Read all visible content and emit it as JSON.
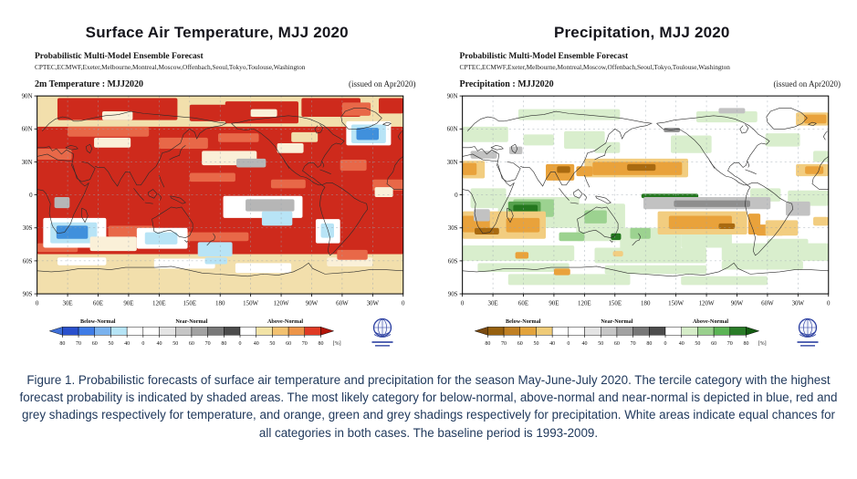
{
  "figure": {
    "caption": "Figure 1. Probabilistic forecasts of surface air temperature and precipitation for the season May-June-July 2020.  The tercile category with the highest forecast probability is indicated by shaded areas. The most likely category for below-normal, above-normal and near-normal is depicted in blue, red and grey shadings respectively for temperature, and orange, green and grey shadings respectively for precipitation. White areas indicate equal chances for all categories in both cases.  The baseline period is 1993-2009."
  },
  "axes": {
    "lat_labels": [
      "90N",
      "60N",
      "30N",
      "0",
      "30S",
      "60S",
      "90S"
    ],
    "lon_labels": [
      "0",
      "30E",
      "60E",
      "90E",
      "120E",
      "150E",
      "180",
      "150W",
      "120W",
      "90W",
      "60W",
      "30W",
      "0"
    ]
  },
  "panels": [
    {
      "title": "Surface Air Temperature, MJJ 2020",
      "header_bold": "Probabilistic Multi-Model Ensemble Forecast",
      "header_sources": "CPTEC,ECMWF,Exeter,Melbourne,Montreal,Moscow,Offenbach,Seoul,Tokyo,Toulouse,Washington",
      "map_label": "2m Temperature : MJJ2020",
      "issued": "(issued on Apr2020)",
      "colorbar": {
        "group_labels": [
          "Below-Normal",
          "Near-Normal",
          "Above-Normal"
        ],
        "tick_labels": [
          "80",
          "70",
          "60",
          "50",
          "40",
          "0",
          "40",
          "50",
          "60",
          "70",
          "80",
          "0",
          "40",
          "50",
          "60",
          "70",
          "80"
        ],
        "unit": "[%]",
        "left_arrow": "#3f6fd8",
        "cells": [
          "#2a50cc",
          "#3f7ce6",
          "#7ab2ee",
          "#b6e4f6",
          "#ffffff",
          "#ffffff",
          "#e4e4e4",
          "#c6c6c6",
          "#a2a2a2",
          "#787878",
          "#4c4c4c",
          "#ffffff",
          "#f2e3a6",
          "#f2c170",
          "#ec9448",
          "#df3a24"
        ],
        "right_arrow": "#b3150a"
      }
    },
    {
      "title": "Precipitation, MJJ 2020",
      "header_bold": "Probabilistic Multi-Model Ensemble Forecast",
      "header_sources": "CPTEC,ECMWF,Exeter,Melbourne,Montreal,Moscow,Offenbach,Seoul,Tokyo,Toulouse,Washington",
      "map_label": "Precipitation : MJJ2020",
      "issued": "(issued on Apr2020)",
      "colorbar": {
        "group_labels": [
          "Below-Normal",
          "Near-Normal",
          "Above-Normal"
        ],
        "tick_labels": [
          "80",
          "70",
          "60",
          "50",
          "40",
          "0",
          "40",
          "50",
          "60",
          "70",
          "80",
          "0",
          "40",
          "50",
          "60",
          "70",
          "80"
        ],
        "unit": "[%]",
        "left_arrow": "#7a4a10",
        "cells": [
          "#96600f",
          "#c08024",
          "#e2a33c",
          "#efcb78",
          "#ffffff",
          "#ffffff",
          "#e4e4e4",
          "#c6c6c6",
          "#a2a2a2",
          "#787878",
          "#4c4c4c",
          "#ffffff",
          "#d5ecc8",
          "#9ad08e",
          "#5cb456",
          "#2a7c28"
        ],
        "right_arrow": "#145c12"
      }
    }
  ],
  "map_data": {
    "temperature": {
      "palette": {
        "bg": "#f2dfac",
        "red": "#ce2a1c",
        "red2": "#e86848",
        "cream": "#faf0d8",
        "white": "#ffffff",
        "cyan": "#b8e4f6",
        "blue": "#4090dc",
        "grey": "#b6b6b6",
        "tan": "#f2dfac"
      },
      "patches": [
        [
          0,
          62,
          360,
          116,
          "red"
        ],
        [
          0,
          -54,
          360,
          36,
          "tan"
        ],
        [
          20,
          88,
          118,
          20,
          "red"
        ],
        [
          150,
          82,
          42,
          15,
          "red"
        ],
        [
          185,
          85,
          72,
          20,
          "red"
        ],
        [
          260,
          88,
          58,
          17,
          "red"
        ],
        [
          300,
          84,
          28,
          12,
          "red2"
        ],
        [
          336,
          88,
          24,
          14,
          "red"
        ],
        [
          64,
          76,
          30,
          8,
          "cream"
        ],
        [
          210,
          78,
          26,
          7,
          "cream"
        ],
        [
          30,
          62,
          80,
          9,
          "red2"
        ],
        [
          120,
          52,
          48,
          10,
          "red2"
        ],
        [
          0,
          42,
          34,
          10,
          "red2"
        ],
        [
          150,
          20,
          45,
          8,
          "red2"
        ],
        [
          230,
          14,
          34,
          8,
          "red2"
        ],
        [
          70,
          -28,
          44,
          10,
          "red2"
        ],
        [
          140,
          -34,
          68,
          8,
          "red2"
        ],
        [
          298,
          32,
          26,
          10,
          "red2"
        ],
        [
          178,
          56,
          40,
          8,
          "red2"
        ],
        [
          330,
          14,
          30,
          10,
          "red2"
        ],
        [
          0,
          -44,
          40,
          8,
          "red2"
        ],
        [
          162,
          40,
          54,
          13,
          "cream"
        ],
        [
          196,
          33,
          29,
          8,
          "grey"
        ],
        [
          236,
          47,
          26,
          9,
          "cream"
        ],
        [
          250,
          57,
          26,
          9,
          "tan"
        ],
        [
          56,
          52,
          36,
          9,
          "cream"
        ],
        [
          332,
          7,
          18,
          9,
          "cream"
        ],
        [
          183,
          -1,
          78,
          20,
          "white"
        ],
        [
          205,
          -4,
          48,
          11,
          "grey"
        ],
        [
          221,
          -15,
          30,
          13,
          "cyan"
        ],
        [
          6,
          -21,
          62,
          27,
          "white"
        ],
        [
          13,
          -25,
          46,
          19,
          "cyan"
        ],
        [
          19,
          -28,
          31,
          12,
          "blue"
        ],
        [
          98,
          -30,
          50,
          19,
          "white"
        ],
        [
          106,
          -34,
          32,
          11,
          "cyan"
        ],
        [
          158,
          -43,
          34,
          13,
          "cyan"
        ],
        [
          274,
          -22,
          24,
          22,
          "white"
        ],
        [
          279,
          -26,
          13,
          13,
          "cyan"
        ],
        [
          304,
          67,
          44,
          22,
          "white"
        ],
        [
          309,
          64,
          34,
          17,
          "cyan"
        ],
        [
          314,
          61,
          22,
          11,
          "blue"
        ],
        [
          17,
          -2,
          15,
          10,
          "grey"
        ],
        [
          52,
          -38,
          46,
          13,
          "cream"
        ],
        [
          115,
          -58,
          60,
          9,
          "white"
        ],
        [
          195,
          -62,
          55,
          9,
          "white"
        ],
        [
          285,
          -57,
          45,
          8,
          "cream"
        ],
        [
          165,
          -57,
          22,
          6,
          "cyan"
        ],
        [
          20,
          -57,
          48,
          7,
          "white"
        ],
        [
          295,
          -50,
          30,
          9,
          "red2"
        ]
      ]
    },
    "precipitation": {
      "palette": {
        "bg": "#ffffff",
        "lg": "#d9eecd",
        "mg": "#9cd290",
        "dg": "#24781f",
        "dg2": "#57a24e",
        "grey": "#c2c2c2",
        "dgrey": "#8e8e8e",
        "or": "#e9a23b",
        "lo": "#f2cd80",
        "dor": "#a96a10"
      },
      "patches": [
        [
          55,
          78,
          100,
          10,
          "lg"
        ],
        [
          230,
          76,
          60,
          10,
          "lg"
        ],
        [
          0,
          62,
          45,
          14,
          "lg"
        ],
        [
          100,
          58,
          40,
          16,
          "lg"
        ],
        [
          205,
          54,
          40,
          16,
          "lg"
        ],
        [
          298,
          56,
          34,
          12,
          "lg"
        ],
        [
          60,
          55,
          30,
          10,
          "lg"
        ],
        [
          130,
          48,
          25,
          10,
          "lg"
        ],
        [
          345,
          40,
          15,
          10,
          "lg"
        ],
        [
          320,
          4,
          40,
          14,
          "lg"
        ],
        [
          283,
          6,
          30,
          12,
          "lg"
        ],
        [
          8,
          6,
          35,
          18,
          "lg"
        ],
        [
          35,
          -2,
          80,
          28,
          "lg"
        ],
        [
          112,
          -8,
          48,
          34,
          "lg"
        ],
        [
          155,
          -30,
          60,
          20,
          "lg"
        ],
        [
          215,
          -32,
          50,
          16,
          "lg"
        ],
        [
          300,
          -40,
          40,
          10,
          "lg"
        ],
        [
          0,
          -46,
          110,
          14,
          "lg"
        ],
        [
          130,
          -48,
          110,
          14,
          "lg"
        ],
        [
          255,
          -44,
          105,
          16,
          "lg"
        ],
        [
          15,
          -62,
          90,
          8,
          "lg"
        ],
        [
          140,
          -64,
          100,
          8,
          "lg"
        ],
        [
          255,
          -60,
          80,
          8,
          "lg"
        ],
        [
          45,
          -72,
          120,
          10,
          "lg"
        ],
        [
          215,
          -74,
          85,
          8,
          "lg"
        ],
        [
          50,
          -4,
          40,
          16,
          "mg"
        ],
        [
          120,
          -14,
          22,
          12,
          "mg"
        ],
        [
          180,
          -1,
          50,
          6,
          "mg"
        ],
        [
          165,
          -30,
          20,
          10,
          "mg"
        ],
        [
          95,
          -34,
          25,
          8,
          "mg"
        ],
        [
          45,
          -6,
          32,
          13,
          "dg2"
        ],
        [
          50,
          -9,
          24,
          8,
          "dg"
        ],
        [
          176,
          1,
          56,
          4,
          "dg"
        ],
        [
          146,
          -35,
          10,
          6,
          "dg"
        ],
        [
          120,
          33,
          102,
          17,
          "lo"
        ],
        [
          128,
          30,
          88,
          12,
          "or"
        ],
        [
          162,
          28,
          28,
          6,
          "dor"
        ],
        [
          82,
          28,
          28,
          15,
          "or"
        ],
        [
          93,
          26,
          13,
          6,
          "dor"
        ],
        [
          112,
          26,
          16,
          9,
          "or"
        ],
        [
          0,
          31,
          22,
          16,
          "lo"
        ],
        [
          0,
          29,
          14,
          11,
          "or"
        ],
        [
          328,
          28,
          32,
          11,
          "lo"
        ],
        [
          337,
          26,
          18,
          7,
          "or"
        ],
        [
          328,
          75,
          32,
          12,
          "lo"
        ],
        [
          336,
          73,
          22,
          8,
          "or"
        ],
        [
          0,
          -15,
          82,
          25,
          "lo"
        ],
        [
          0,
          -19,
          27,
          15,
          "or"
        ],
        [
          43,
          -21,
          33,
          13,
          "or"
        ],
        [
          12,
          -30,
          24,
          6,
          "dor"
        ],
        [
          11,
          -13,
          16,
          11,
          "grey"
        ],
        [
          192,
          -15,
          88,
          21,
          "lo"
        ],
        [
          203,
          -19,
          62,
          12,
          "or"
        ],
        [
          252,
          -26,
          16,
          5,
          "dor"
        ],
        [
          281,
          -17,
          12,
          19,
          "or"
        ],
        [
          289,
          -27,
          27,
          10,
          "or"
        ],
        [
          298,
          -23,
          32,
          14,
          "lo"
        ],
        [
          345,
          -20,
          15,
          8,
          "lo"
        ],
        [
          178,
          -2,
          125,
          11,
          "grey"
        ],
        [
          208,
          -5,
          75,
          6,
          "dgrey"
        ],
        [
          318,
          -6,
          24,
          13,
          "grey"
        ],
        [
          8,
          40,
          26,
          7,
          "grey"
        ],
        [
          46,
          44,
          13,
          7,
          "grey"
        ],
        [
          198,
          61,
          16,
          4,
          "dgrey"
        ],
        [
          252,
          79,
          26,
          5,
          "grey"
        ],
        [
          52,
          -52,
          13,
          6,
          "or"
        ],
        [
          148,
          -51,
          10,
          5,
          "lo"
        ],
        [
          90,
          -67,
          16,
          6,
          "or"
        ]
      ]
    }
  }
}
